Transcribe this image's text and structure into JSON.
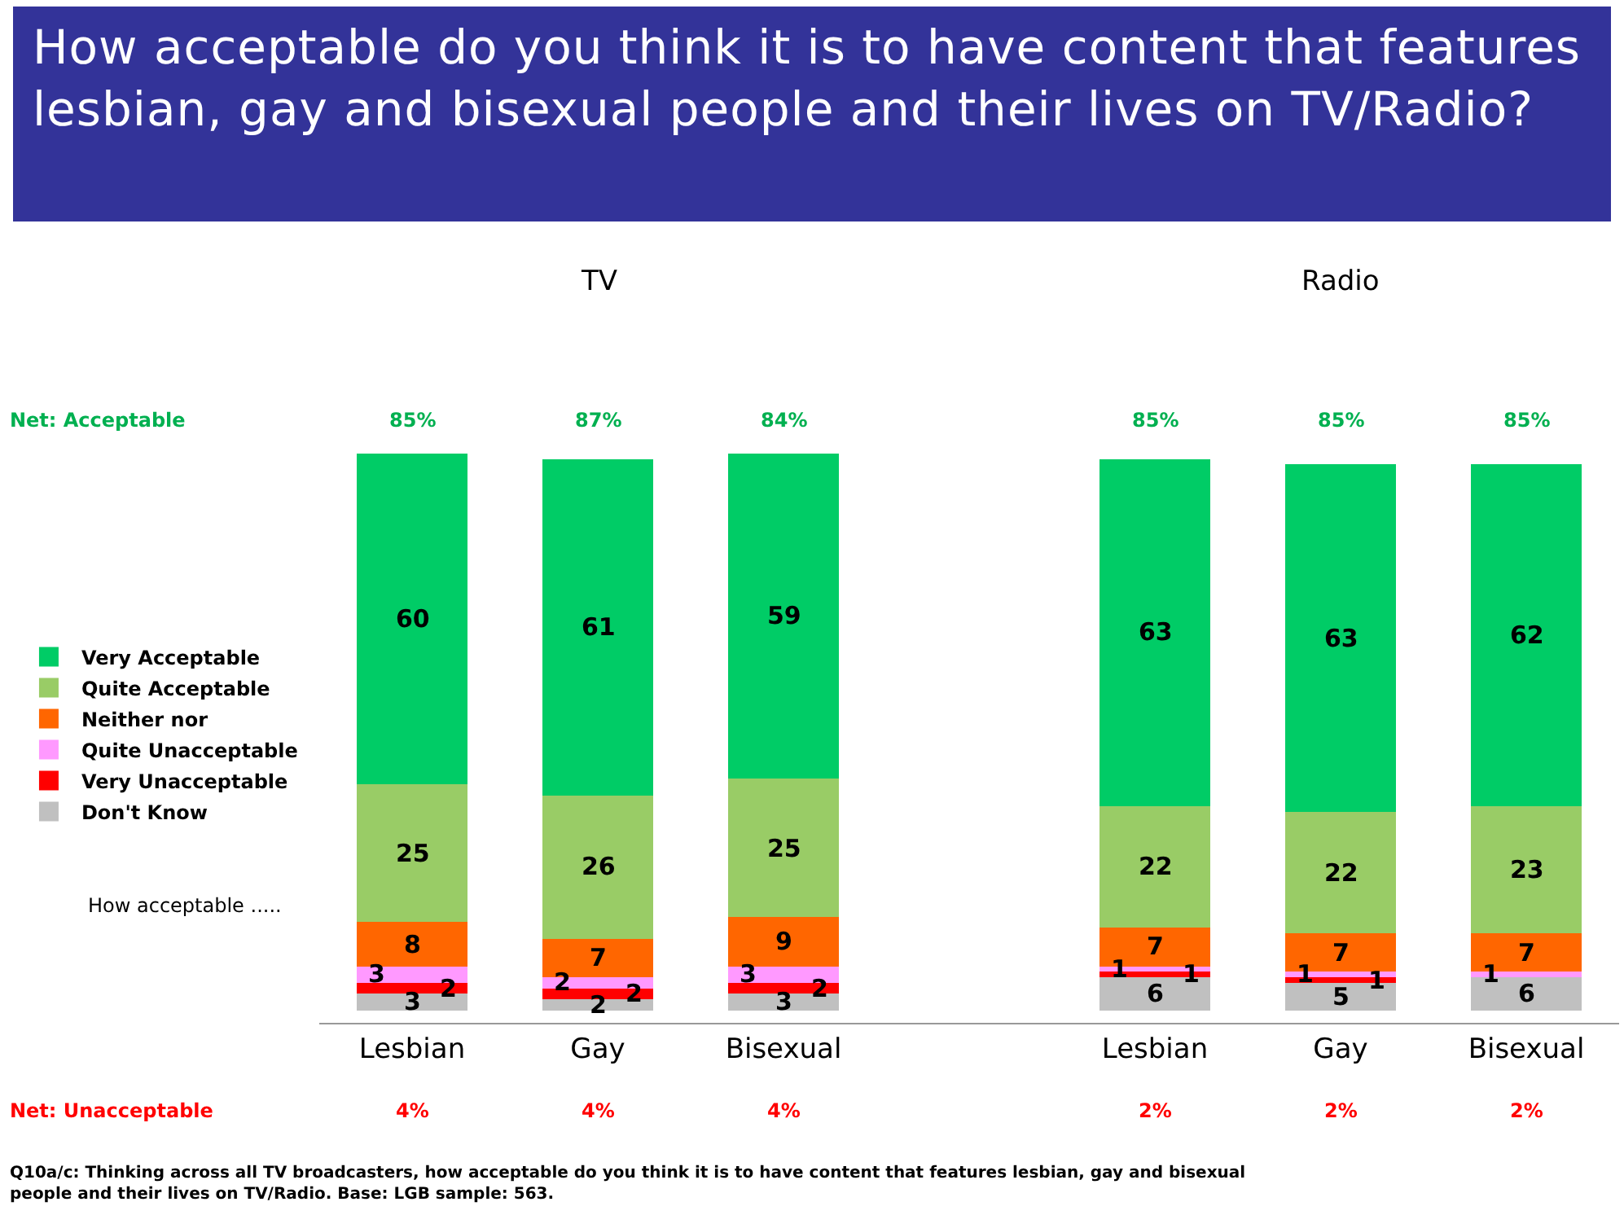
{
  "chart_data": {
    "type": "bar",
    "stacked": true,
    "title": "How acceptable do you think it is to have content that features lesbian, gay and bisexual people and their lives on TV/Radio?",
    "categories": [
      "Lesbian",
      "Gay",
      "Bisexual",
      null,
      "Lesbian",
      "Gay",
      "Bisexual"
    ],
    "series": [
      {
        "name": "Don't Know",
        "color": "#c0c0c0",
        "values": [
          3,
          2,
          3,
          null,
          6,
          5,
          6
        ]
      },
      {
        "name": "Very Unacceptable",
        "color": "#ff0000",
        "values": [
          2,
          2,
          2,
          null,
          1,
          1,
          null
        ]
      },
      {
        "name": "Quite Unacceptable",
        "color": "#ff99ff",
        "values": [
          3,
          2,
          3,
          null,
          1,
          1,
          1
        ]
      },
      {
        "name": "Neither nor",
        "color": "#ff6600",
        "values": [
          8,
          7,
          9,
          null,
          7,
          7,
          7
        ]
      },
      {
        "name": "Quite Acceptable",
        "color": "#99cc66",
        "values": [
          25,
          26,
          25,
          null,
          22,
          22,
          23
        ]
      },
      {
        "name": "Very Acceptable",
        "color": "#00cc66",
        "values": [
          60,
          61,
          59,
          null,
          63,
          63,
          62
        ]
      }
    ],
    "data_labels": true,
    "legend": "left",
    "grid": false,
    "tick_labels": "x",
    "annotations": [
      "TV",
      "Radio",
      "Net: Acceptable",
      "85%",
      "87%",
      "84%",
      "85%",
      "85%",
      "85%",
      "Net: Unacceptable",
      "4%",
      "4%",
      "4%",
      "2%",
      "2%",
      "2%",
      "How acceptable .....",
      "Q10a/c: Thinking across all TV broadcasters, how acceptable do you think it is to have content that features lesbian, gay and bisexual people and their lives on TV/Radio. Base: LGB sample: 563."
    ]
  }
}
